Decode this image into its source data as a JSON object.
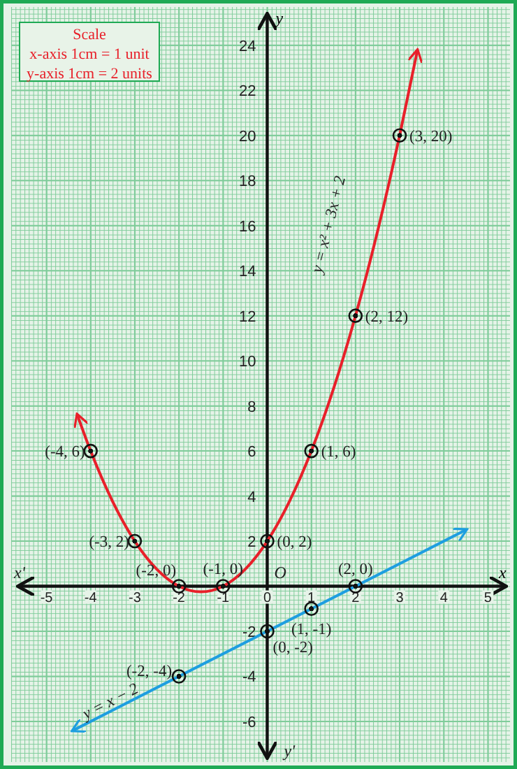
{
  "chart_data": {
    "type": "line",
    "xlabel": "x",
    "ylabel": "y",
    "xlim": [
      -5.8,
      5.5
    ],
    "ylim": [
      -7.8,
      25.7
    ],
    "xticks": [
      -5,
      -4,
      -3,
      -2,
      -1,
      0,
      1,
      2,
      3,
      4,
      5
    ],
    "yticks": [
      -6,
      -4,
      -2,
      2,
      4,
      6,
      8,
      10,
      12,
      14,
      16,
      18,
      20,
      22,
      24
    ],
    "grid": true,
    "series": [
      {
        "color": "#e8202a",
        "x": [
          -4.3,
          -4,
          -3.5,
          -3,
          -2.5,
          -2,
          -1.75,
          -1.5,
          -1.25,
          -1,
          -0.5,
          0,
          0.5,
          1,
          1.5,
          2,
          2.5,
          3,
          3.4
        ],
        "values": [
          7.59,
          6,
          3.75,
          2,
          0.75,
          0,
          -0.19,
          -0.25,
          -0.19,
          0,
          0.75,
          2,
          3.75,
          6,
          8.75,
          12,
          15.75,
          20,
          23.76
        ]
      },
      {
        "color": "#1e9ee0",
        "x": [
          -4.4,
          4.5
        ],
        "values": [
          -6.4,
          2.5
        ]
      },
      {
        "type": "scatter",
        "color": "#111111",
        "marker": "circle",
        "x": [
          -4,
          -3,
          -2,
          -1,
          0,
          1,
          2,
          3,
          -2,
          0,
          1,
          2
        ],
        "values": [
          6,
          2,
          0,
          0,
          2,
          6,
          12,
          20,
          -4,
          -2,
          -1,
          0
        ]
      }
    ],
    "annotations": [
      "Scale",
      "x-axis 1cm = 1 unit",
      "y-axis 1cm = 2 units",
      "y = x² + 3x + 2",
      "y = x − 2",
      "O",
      "x'",
      "y'",
      {
        "text": "(-4, 6)",
        "x": -4,
        "y": 6
      },
      {
        "text": "(-3, 2)",
        "x": -3,
        "y": 2
      },
      {
        "text": "(-2, 0)",
        "x": -2,
        "y": 0
      },
      {
        "text": "(-1, 0)",
        "x": -1,
        "y": 0
      },
      {
        "text": "(0, 2)",
        "x": 0,
        "y": 2
      },
      {
        "text": "(1, 6)",
        "x": 1,
        "y": 6
      },
      {
        "text": "(2, 12)",
        "x": 2,
        "y": 12
      },
      {
        "text": "(3, 20)",
        "x": 3,
        "y": 20
      },
      {
        "text": "(-2, -4)",
        "x": -2,
        "y": -4
      },
      {
        "text": "(0, -2)",
        "x": 0,
        "y": -2
      },
      {
        "text": "(1, -1)",
        "x": 1,
        "y": -1
      },
      {
        "text": "(2, 0)",
        "x": 2,
        "y": 0
      }
    ]
  }
}
